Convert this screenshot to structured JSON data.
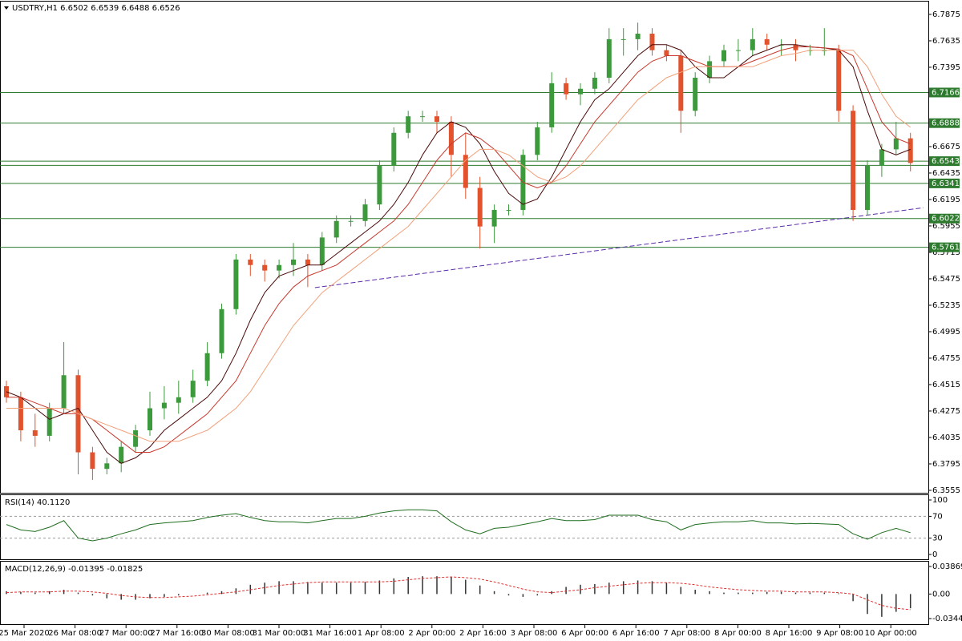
{
  "chart_data": [
    {
      "type": "candlestick",
      "title": "USDTRY,H1  6.6502 6.6539 6.6488 6.6526",
      "time_labels": [
        "25 Mar 2020",
        "26 Mar 08:00",
        "27 Mar 00:00",
        "27 Mar 16:00",
        "30 Mar 08:00",
        "31 Mar 00:00",
        "31 Mar 16:00",
        "1 Apr 08:00",
        "2 Apr 00:00",
        "2 Apr 16:00",
        "3 Apr 08:00",
        "6 Apr 00:00",
        "6 Apr 16:00",
        "7 Apr 08:00",
        "8 Apr 00:00",
        "8 Apr 16:00",
        "9 Apr 08:00",
        "10 Apr 00:00"
      ],
      "up_color": "#3c9a3c",
      "down_color": "#e2522c",
      "candles": [
        [
          6.45,
          6.455,
          6.435,
          6.44
        ],
        [
          6.44,
          6.445,
          6.4,
          6.41
        ],
        [
          6.41,
          6.425,
          6.395,
          6.405
        ],
        [
          6.405,
          6.435,
          6.4,
          6.43
        ],
        [
          6.43,
          6.49,
          6.425,
          6.46
        ],
        [
          6.46,
          6.465,
          6.37,
          6.39
        ],
        [
          6.39,
          6.395,
          6.365,
          6.375
        ],
        [
          6.375,
          6.385,
          6.37,
          6.38
        ],
        [
          6.38,
          6.4,
          6.372,
          6.395
        ],
        [
          6.395,
          6.415,
          6.39,
          6.41
        ],
        [
          6.41,
          6.445,
          6.405,
          6.43
        ],
        [
          6.43,
          6.45,
          6.42,
          6.435
        ],
        [
          6.435,
          6.455,
          6.425,
          6.44
        ],
        [
          6.44,
          6.465,
          6.435,
          6.455
        ],
        [
          6.455,
          6.49,
          6.45,
          6.48
        ],
        [
          6.48,
          6.525,
          6.475,
          6.52
        ],
        [
          6.52,
          6.57,
          6.515,
          6.565
        ],
        [
          6.565,
          6.57,
          6.55,
          6.56
        ],
        [
          6.56,
          6.565,
          6.545,
          6.555
        ],
        [
          6.555,
          6.565,
          6.548,
          6.56
        ],
        [
          6.56,
          6.58,
          6.55,
          6.565
        ],
        [
          6.565,
          6.57,
          6.54,
          6.56
        ],
        [
          6.56,
          6.59,
          6.555,
          6.585
        ],
        [
          6.585,
          6.605,
          6.58,
          6.6
        ],
        [
          6.6,
          6.605,
          6.595,
          6.6
        ],
        [
          6.6,
          6.62,
          6.595,
          6.615
        ],
        [
          6.615,
          6.655,
          6.61,
          6.65
        ],
        [
          6.65,
          6.685,
          6.645,
          6.68
        ],
        [
          6.68,
          6.7,
          6.675,
          6.695
        ],
        [
          6.695,
          6.7,
          6.69,
          6.695
        ],
        [
          6.695,
          6.7,
          6.68,
          6.69
        ],
        [
          6.69,
          6.695,
          6.64,
          6.66
        ],
        [
          6.66,
          6.68,
          6.62,
          6.63
        ],
        [
          6.63,
          6.64,
          6.575,
          6.595
        ],
        [
          6.595,
          6.615,
          6.58,
          6.61
        ],
        [
          6.61,
          6.615,
          6.605,
          6.61
        ],
        [
          6.61,
          6.665,
          6.605,
          6.66
        ],
        [
          6.66,
          6.69,
          6.655,
          6.685
        ],
        [
          6.685,
          6.735,
          6.68,
          6.725
        ],
        [
          6.725,
          6.73,
          6.71,
          6.715
        ],
        [
          6.715,
          6.725,
          6.705,
          6.72
        ],
        [
          6.72,
          6.735,
          6.715,
          6.73
        ],
        [
          6.73,
          6.775,
          6.725,
          6.765
        ],
        [
          6.765,
          6.775,
          6.75,
          6.765
        ],
        [
          6.765,
          6.78,
          6.755,
          6.77
        ],
        [
          6.77,
          6.775,
          6.75,
          6.755
        ],
        [
          6.755,
          6.76,
          6.745,
          6.75
        ],
        [
          6.75,
          6.755,
          6.68,
          6.7
        ],
        [
          6.7,
          6.735,
          6.695,
          6.73
        ],
        [
          6.73,
          6.75,
          6.725,
          6.745
        ],
        [
          6.745,
          6.76,
          6.74,
          6.755
        ],
        [
          6.755,
          6.765,
          6.745,
          6.755
        ],
        [
          6.755,
          6.775,
          6.75,
          6.765
        ],
        [
          6.765,
          6.77,
          6.755,
          6.76
        ],
        [
          6.76,
          6.765,
          6.75,
          6.76
        ],
        [
          6.76,
          6.765,
          6.745,
          6.755
        ],
        [
          6.755,
          6.76,
          6.75,
          6.755
        ],
        [
          6.755,
          6.775,
          6.75,
          6.755
        ],
        [
          6.755,
          6.76,
          6.69,
          6.7
        ],
        [
          6.7,
          6.705,
          6.6,
          6.61
        ],
        [
          6.61,
          6.655,
          6.605,
          6.65
        ],
        [
          6.65,
          6.67,
          6.64,
          6.665
        ],
        [
          6.665,
          6.69,
          6.66,
          6.675
        ],
        [
          6.675,
          6.68,
          6.645,
          6.6526
        ]
      ],
      "moving_averages": [
        {
          "color": "#4a0a0a",
          "values": [
            6.445,
            6.44,
            6.43,
            6.42,
            6.425,
            6.43,
            6.41,
            6.39,
            6.38,
            6.385,
            6.395,
            6.41,
            6.42,
            6.43,
            6.44,
            6.455,
            6.48,
            6.51,
            6.535,
            6.55,
            6.555,
            6.56,
            6.56,
            6.57,
            6.58,
            6.59,
            6.6,
            6.615,
            6.635,
            6.66,
            6.68,
            6.69,
            6.685,
            6.67,
            6.645,
            6.625,
            6.615,
            6.62,
            6.64,
            6.665,
            6.69,
            6.71,
            6.72,
            6.735,
            6.75,
            6.76,
            6.76,
            6.755,
            6.74,
            6.73,
            6.73,
            6.74,
            6.75,
            6.755,
            6.76,
            6.76,
            6.758,
            6.757,
            6.755,
            6.74,
            6.7,
            6.665,
            6.66,
            6.665
          ]
        },
        {
          "color": "#c8382c",
          "values": [
            6.44,
            6.44,
            6.435,
            6.43,
            6.425,
            6.425,
            6.42,
            6.41,
            6.4,
            6.39,
            6.39,
            6.395,
            6.405,
            6.415,
            6.425,
            6.44,
            6.455,
            6.48,
            6.505,
            6.525,
            6.54,
            6.55,
            6.555,
            6.56,
            6.57,
            6.58,
            6.59,
            6.6,
            6.615,
            6.635,
            6.655,
            6.67,
            6.68,
            6.675,
            6.665,
            6.65,
            6.635,
            6.63,
            6.635,
            6.65,
            6.67,
            6.69,
            6.705,
            6.72,
            6.735,
            6.745,
            6.75,
            6.75,
            6.745,
            6.74,
            6.74,
            6.74,
            6.745,
            6.75,
            6.755,
            6.758,
            6.758,
            6.757,
            6.756,
            6.75,
            6.72,
            6.69,
            6.675,
            6.67
          ]
        },
        {
          "color": "#f2a07a",
          "values": [
            6.43,
            6.43,
            6.43,
            6.43,
            6.43,
            6.425,
            6.42,
            6.415,
            6.41,
            6.405,
            6.4,
            6.4,
            6.4,
            6.405,
            6.41,
            6.42,
            6.43,
            6.445,
            6.465,
            6.485,
            6.505,
            6.52,
            6.535,
            6.545,
            6.555,
            6.565,
            6.575,
            6.585,
            6.595,
            6.61,
            6.625,
            6.64,
            6.655,
            6.665,
            6.665,
            6.66,
            6.65,
            6.64,
            6.635,
            6.64,
            6.65,
            6.665,
            6.68,
            6.695,
            6.71,
            6.72,
            6.73,
            6.735,
            6.74,
            6.74,
            6.74,
            6.74,
            6.74,
            6.745,
            6.75,
            6.752,
            6.755,
            6.755,
            6.755,
            6.755,
            6.74,
            6.715,
            6.695,
            6.685
          ]
        }
      ],
      "levels": [
        6.7166,
        6.6888,
        6.6543,
        6.6341,
        6.6022,
        6.5761
      ],
      "unlabeled_levels": [
        6.6505
      ],
      "level_color": "#2e7a2e",
      "trendline": {
        "x": [
          21.5,
          63.9
        ],
        "values": [
          6.5395,
          6.612
        ],
        "color": "#5a2aa8"
      },
      "ylim": [
        6.3533,
        6.7991
      ],
      "yticks": [
        6.7875,
        6.7635,
        6.7395,
        6.6675,
        6.6435,
        6.6195,
        6.5955,
        6.5715,
        6.5475,
        6.5235,
        6.4995,
        6.4755,
        6.4515,
        6.4275,
        6.4035,
        6.3795,
        6.3555
      ]
    },
    {
      "type": "line",
      "title": "RSI(14) 40.1120",
      "color": "#1f6e1f",
      "values": [
        55,
        45,
        42,
        50,
        62,
        30,
        25,
        30,
        38,
        45,
        55,
        58,
        60,
        62,
        68,
        72,
        75,
        68,
        62,
        60,
        60,
        58,
        62,
        66,
        66,
        70,
        76,
        80,
        82,
        82,
        80,
        60,
        45,
        38,
        48,
        50,
        55,
        60,
        66,
        62,
        62,
        64,
        72,
        72,
        72,
        64,
        60,
        45,
        55,
        58,
        60,
        60,
        62,
        58,
        58,
        56,
        57,
        56,
        55,
        38,
        28,
        40,
        48,
        40
      ],
      "ylim": [
        0,
        100
      ],
      "yticks": [
        100,
        70,
        30,
        0
      ],
      "levels": [
        70,
        30
      ]
    },
    {
      "type": "macd",
      "title": "MACD(12,26,9) -0.01395 -0.01825",
      "histogram": {
        "color": "#333333",
        "values": [
          0.004,
          0.003,
          0.002,
          0.004,
          0.006,
          0.002,
          -0.002,
          -0.006,
          -0.008,
          -0.008,
          -0.006,
          -0.004,
          -0.002,
          0.0,
          0.002,
          0.004,
          0.008,
          0.013,
          0.016,
          0.018,
          0.018,
          0.017,
          0.016,
          0.016,
          0.016,
          0.017,
          0.019,
          0.022,
          0.024,
          0.025,
          0.025,
          0.024,
          0.02,
          0.012,
          0.004,
          -0.002,
          -0.004,
          -0.002,
          0.004,
          0.01,
          0.013,
          0.014,
          0.016,
          0.018,
          0.019,
          0.018,
          0.016,
          0.01,
          0.006,
          0.004,
          0.002,
          0.002,
          0.002,
          0.003,
          0.003,
          0.002,
          0.002,
          0.002,
          0.001,
          -0.01,
          -0.028,
          -0.032,
          -0.025,
          -0.02
        ]
      },
      "signal": {
        "color": "#e03030",
        "values": [
          0.002,
          0.003,
          0.003,
          0.003,
          0.004,
          0.004,
          0.003,
          0.001,
          -0.002,
          -0.004,
          -0.005,
          -0.005,
          -0.004,
          -0.003,
          -0.001,
          0.001,
          0.003,
          0.006,
          0.009,
          0.012,
          0.014,
          0.016,
          0.017,
          0.017,
          0.017,
          0.017,
          0.017,
          0.018,
          0.02,
          0.022,
          0.023,
          0.024,
          0.023,
          0.021,
          0.017,
          0.012,
          0.007,
          0.003,
          0.002,
          0.004,
          0.006,
          0.009,
          0.011,
          0.013,
          0.015,
          0.016,
          0.016,
          0.015,
          0.013,
          0.01,
          0.008,
          0.006,
          0.005,
          0.004,
          0.004,
          0.003,
          0.003,
          0.003,
          0.002,
          0.0,
          -0.008,
          -0.016,
          -0.02,
          -0.022
        ]
      },
      "ylim": [
        -0.0412,
        0.0443
      ],
      "yticks": [
        0.03869,
        {
          "value": 0,
          "label": "0.00"
        },
        -0.03447
      ]
    }
  ]
}
